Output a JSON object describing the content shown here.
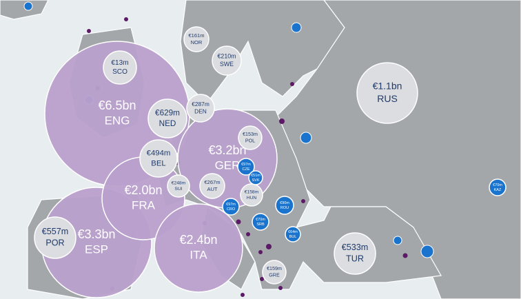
{
  "bubbles": [
    {
      "amount": "€6.5bn",
      "code": "ENG"
    },
    {
      "amount": "€13m",
      "code": "SCO"
    },
    {
      "amount": "€3.3bn",
      "code": "ESP"
    },
    {
      "amount": "€2.0bn",
      "code": "FRA"
    },
    {
      "amount": "€2.4bn",
      "code": "ITA"
    },
    {
      "amount": "€3.2bn",
      "code": "GER"
    },
    {
      "amount": "€629m",
      "code": "NED"
    },
    {
      "amount": "€494m",
      "code": "BEL"
    },
    {
      "amount": "€287m",
      "code": "DEN"
    },
    {
      "amount": "€161m",
      "code": "NOR"
    },
    {
      "amount": "€210m",
      "code": "SWE"
    },
    {
      "amount": "€1.1bn",
      "code": "RUS"
    },
    {
      "amount": "€153m",
      "code": "POL"
    },
    {
      "amount": "€248m",
      "code": "SUI"
    },
    {
      "amount": "€267m",
      "code": "AUT"
    },
    {
      "amount": "€158m",
      "code": "HUN"
    },
    {
      "amount": "€557m",
      "code": "POR"
    },
    {
      "amount": "€533m",
      "code": "TUR"
    },
    {
      "amount": "€159m",
      "code": "GRE"
    },
    {
      "amount": "€97m",
      "code": "CZE"
    },
    {
      "amount": "€51m",
      "code": "SVK"
    },
    {
      "amount": "€97m",
      "code": "CRO"
    },
    {
      "amount": "€70m",
      "code": "SRB"
    },
    {
      "amount": "€90m",
      "code": "ROU"
    },
    {
      "amount": "€64m",
      "code": "BUL"
    },
    {
      "amount": "€70m",
      "code": "KAZ"
    }
  ]
}
